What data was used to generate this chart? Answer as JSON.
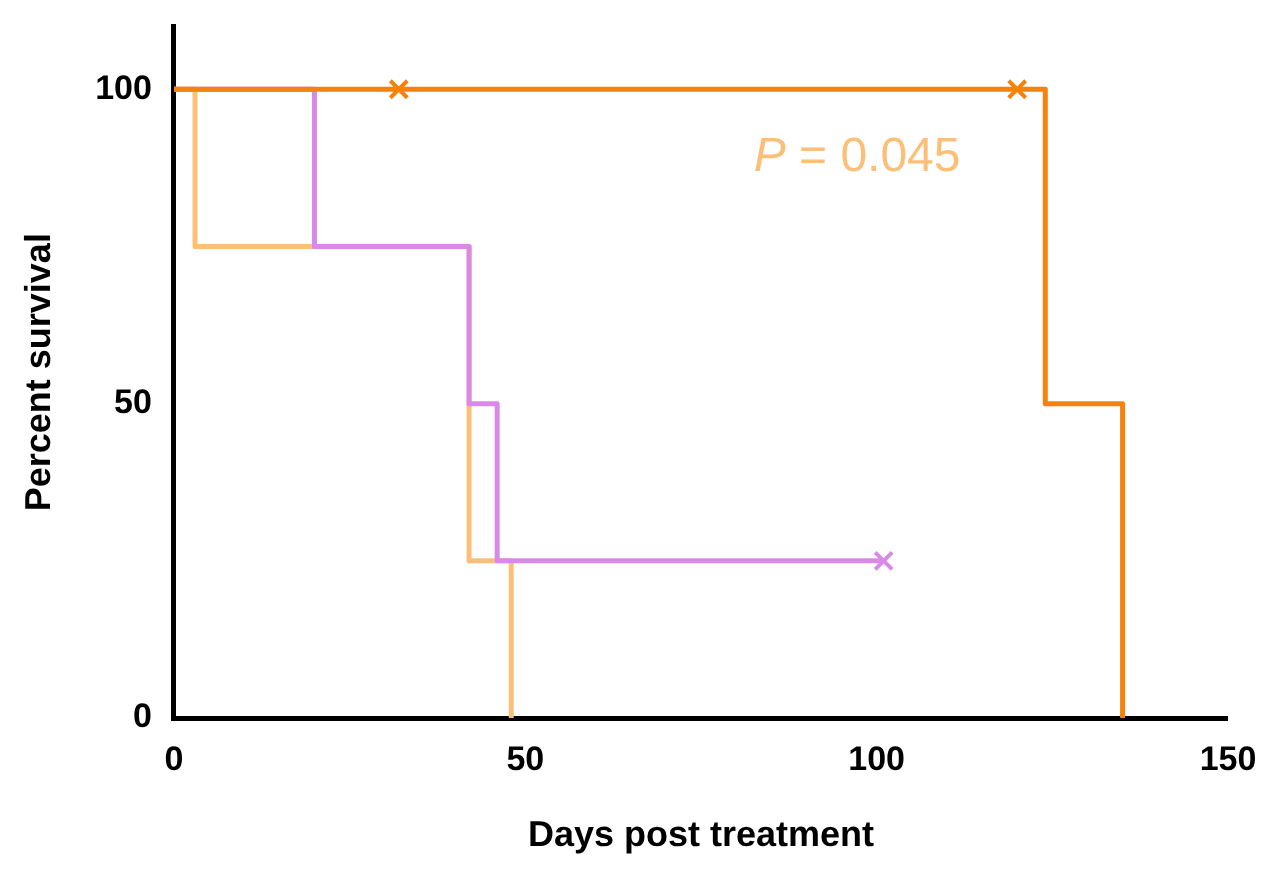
{
  "chart_data": {
    "type": "step",
    "xlabel": "Days post treatment",
    "ylabel": "Percent survival",
    "xlim": [
      0,
      150
    ],
    "xticks": [
      0,
      50,
      100,
      150
    ],
    "ylim": [
      0,
      110
    ],
    "yticks": [
      0,
      50,
      100
    ],
    "grid": false,
    "legend": false,
    "marker": "none",
    "annotations": [
      "P = 0.045"
    ],
    "series": [
      {
        "color": "#f5820a",
        "x": [
          0,
          124,
          135
        ],
        "values": [
          100,
          50,
          0
        ]
      },
      {
        "color": "#d98ae8",
        "x": [
          0,
          20,
          42,
          46,
          101
        ],
        "values": [
          100,
          75,
          50,
          25,
          25
        ]
      },
      {
        "color": "#fcbf78",
        "x": [
          0,
          3,
          42,
          48
        ],
        "values": [
          100,
          75,
          25,
          0
        ]
      },
      {
        "type": "scatter",
        "marker": "cross",
        "color": "#f5820a",
        "x": [
          32,
          120
        ],
        "values": [
          100,
          100
        ]
      },
      {
        "type": "scatter",
        "marker": "cross",
        "color": "#d98ae8",
        "x": [
          101
        ],
        "values": [
          25
        ]
      }
    ]
  }
}
